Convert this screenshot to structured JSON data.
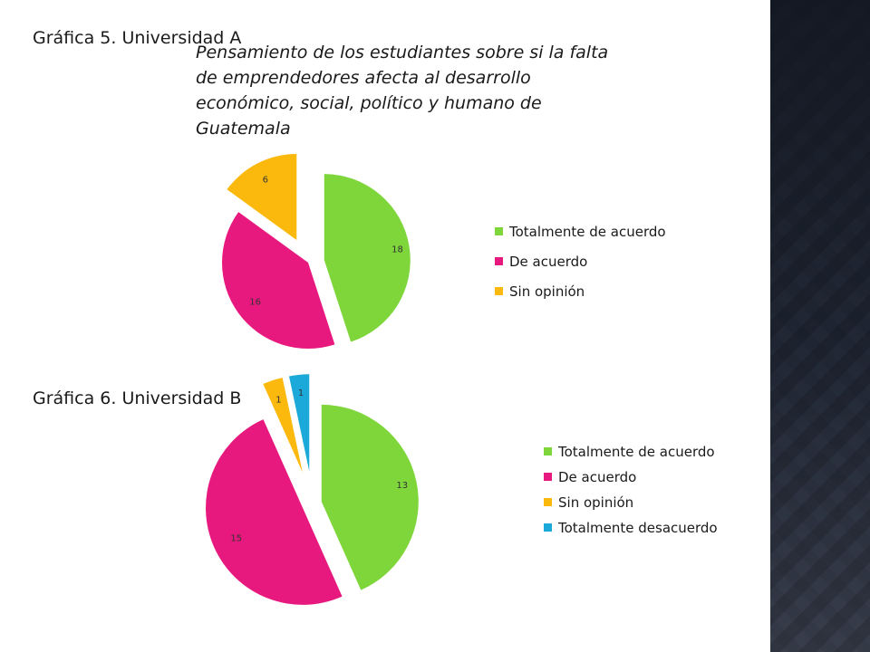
{
  "slide": {
    "label5": "Gráfica 5. Universidad A",
    "label6": "Gráfica 6. Universidad B",
    "subtitle": "Pensamiento de los estudiantes sobre si la falta de emprendedores afecta al desarrollo económico, social, político y humano de Guatemala"
  },
  "colors": {
    "totalmente_de_acuerdo": "#7ed63b",
    "de_acuerdo": "#e8197e",
    "sin_opinion": "#fbb90e",
    "totalmente_desacuerdo": "#1aa9d9",
    "side_panel": "#3b4252"
  },
  "chart_data": [
    {
      "type": "pie",
      "exploded": true,
      "legend_position": "right",
      "series": [
        {
          "name": "Totalmente de acuerdo",
          "value": 18,
          "color": "#7ed63b"
        },
        {
          "name": "De acuerdo",
          "value": 16,
          "color": "#e8197e"
        },
        {
          "name": "Sin opinión",
          "value": 6,
          "color": "#fbb90e"
        }
      ]
    },
    {
      "type": "pie",
      "exploded": true,
      "legend_position": "right",
      "series": [
        {
          "name": "Totalmente de acuerdo",
          "value": 13,
          "color": "#7ed63b"
        },
        {
          "name": "De acuerdo",
          "value": 15,
          "color": "#e8197e"
        },
        {
          "name": "Sin opinión",
          "value": 1,
          "color": "#fbb90e"
        },
        {
          "name": "Totalmente desacuerdo",
          "value": 1,
          "color": "#1aa9d9"
        }
      ]
    }
  ]
}
